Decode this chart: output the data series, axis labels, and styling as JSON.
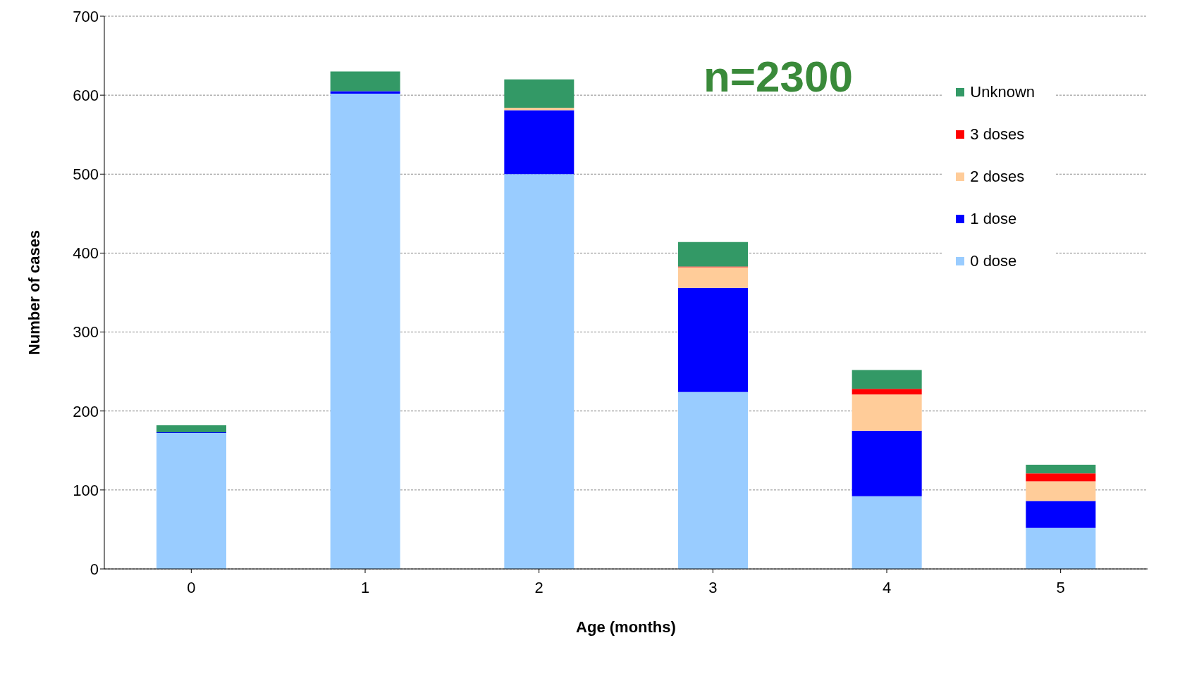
{
  "chart_data": {
    "type": "bar",
    "stacked": true,
    "xlabel": "Age (months)",
    "ylabel": "Number of cases",
    "categories": [
      "0",
      "1",
      "2",
      "3",
      "4",
      "5"
    ],
    "series": [
      {
        "name": "0 dose",
        "color": "#99ccff",
        "values": [
          172,
          602,
          500,
          224,
          92,
          52
        ]
      },
      {
        "name": "1 dose",
        "color": "#0000ff",
        "values": [
          1,
          3,
          81,
          132,
          83,
          34
        ]
      },
      {
        "name": "2 doses",
        "color": "#ffcc99",
        "values": [
          0,
          0,
          3,
          26,
          46,
          25
        ]
      },
      {
        "name": "3 doses",
        "color": "#ff0000",
        "values": [
          0,
          0,
          0,
          1,
          7,
          10
        ]
      },
      {
        "name": "Unknown",
        "color": "#339966",
        "values": [
          9,
          25,
          36,
          31,
          24,
          11
        ]
      }
    ],
    "ylim": [
      0,
      700
    ],
    "yticks": [
      0,
      100,
      200,
      300,
      400,
      500,
      600,
      700
    ],
    "grid": "y",
    "legend": "top right",
    "annotations": [
      "n=2300"
    ]
  }
}
